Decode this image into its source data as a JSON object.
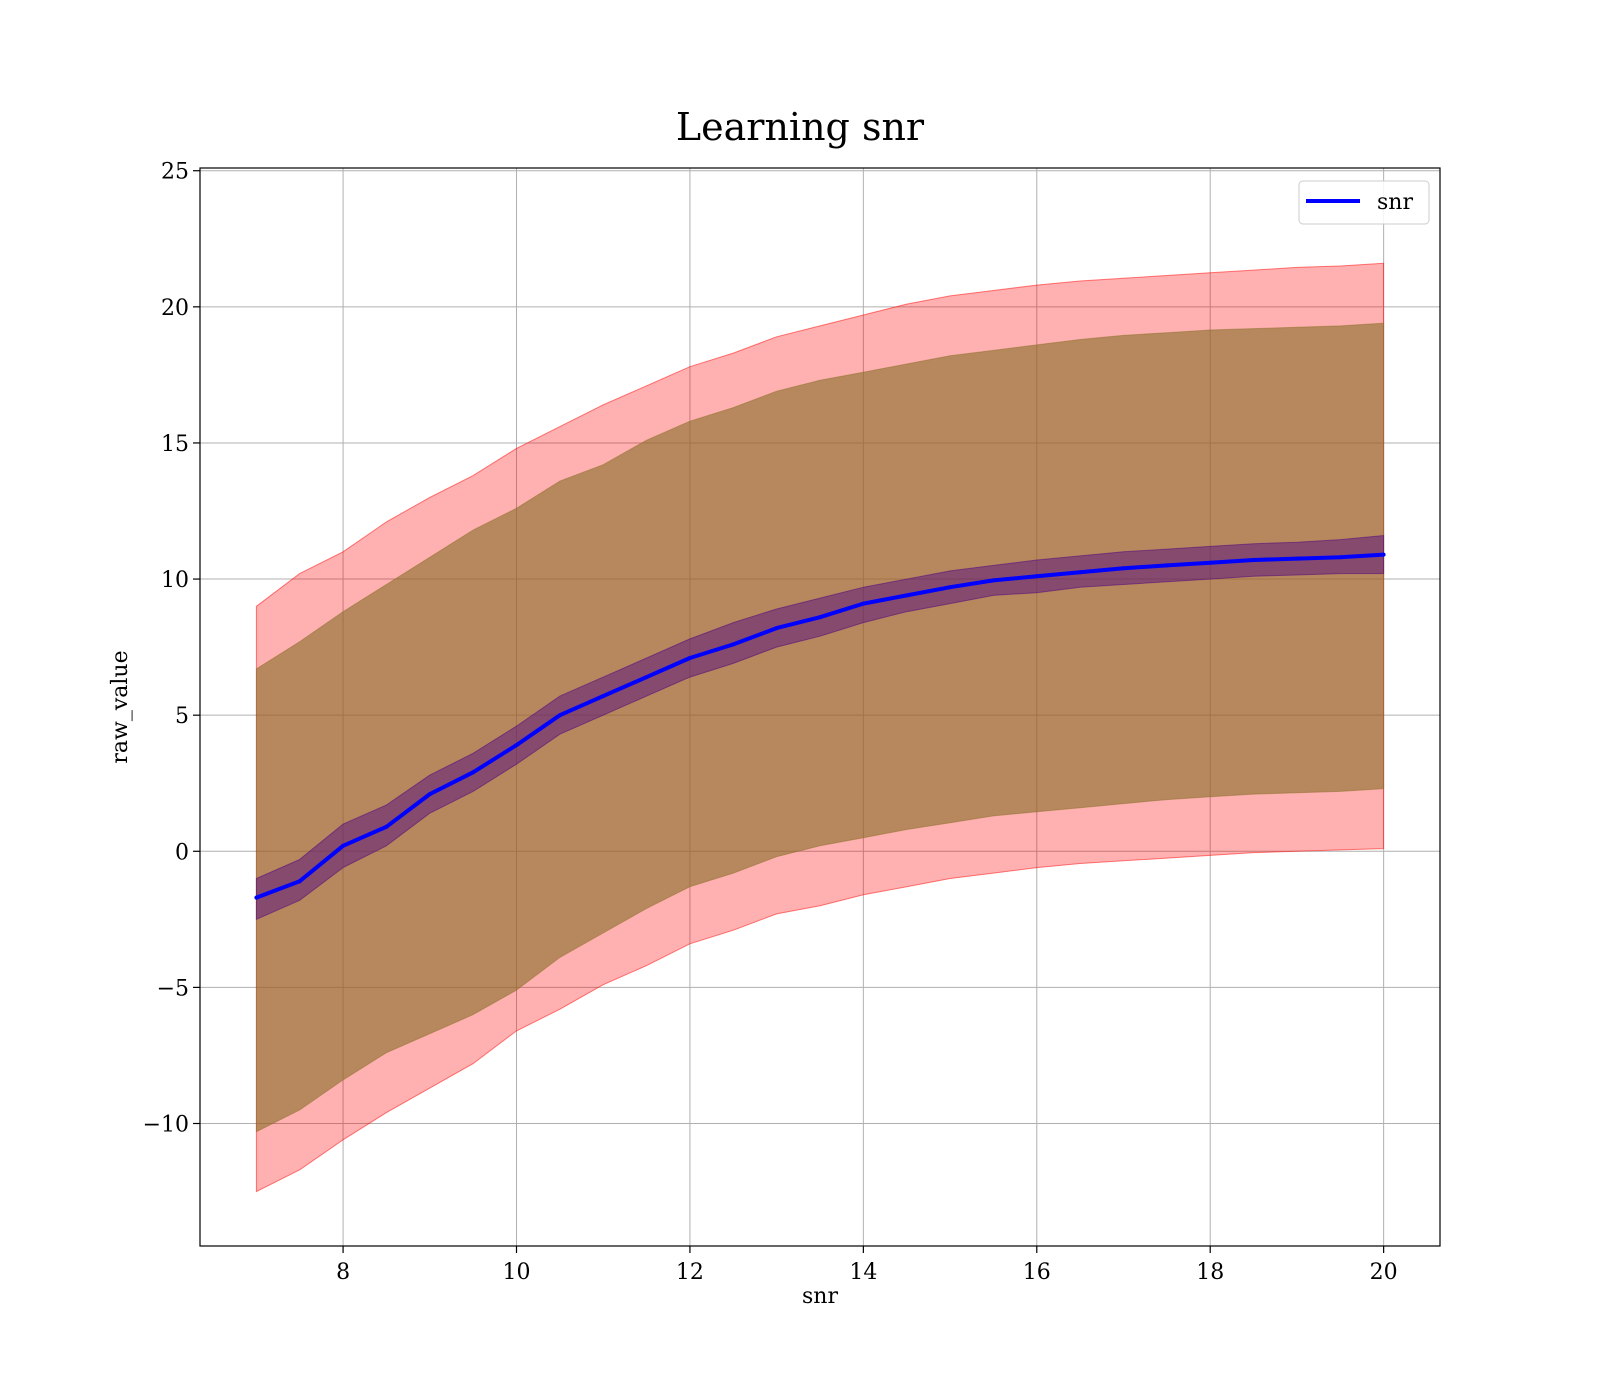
{
  "chart_data": {
    "type": "line",
    "title": "Learning snr",
    "xlabel": "snr",
    "ylabel": "raw_value",
    "xlim": [
      6.35,
      20.65
    ],
    "ylim": [
      -14.5,
      25.1
    ],
    "xticks": [
      8,
      10,
      12,
      14,
      16,
      18,
      20
    ],
    "yticks": [
      -10,
      -5,
      0,
      5,
      10,
      15,
      20,
      25
    ],
    "ytick_labels": [
      "−10",
      "−5",
      "0",
      "5",
      "10",
      "15",
      "20",
      "25"
    ],
    "xtick_labels": [
      "8",
      "10",
      "12",
      "14",
      "16",
      "18",
      "20"
    ],
    "grid": true,
    "legend": {
      "position": "top-right",
      "entries": [
        "snr"
      ]
    },
    "colors": {
      "line": "#0000ff",
      "outer_band": "#ff0000",
      "middle_band": "#8b6f2a",
      "inner_band": "#4b0082"
    },
    "x": [
      7,
      7.5,
      8,
      8.5,
      9,
      9.5,
      10,
      10.5,
      11,
      11.5,
      12,
      12.5,
      13,
      13.5,
      14,
      14.5,
      15,
      15.5,
      16,
      16.5,
      17,
      17.5,
      18,
      18.5,
      19,
      19.5,
      20
    ],
    "series": [
      {
        "name": "snr",
        "role": "mean",
        "values": [
          -1.7,
          -1.1,
          0.2,
          0.9,
          2.1,
          2.9,
          3.9,
          5.0,
          5.7,
          6.4,
          7.1,
          7.6,
          8.2,
          8.6,
          9.1,
          9.4,
          9.7,
          9.95,
          10.1,
          10.25,
          10.4,
          10.5,
          10.6,
          10.7,
          10.75,
          10.8,
          10.9
        ]
      },
      {
        "role": "inner_band",
        "upper": [
          -1.0,
          -0.3,
          1.0,
          1.7,
          2.8,
          3.6,
          4.6,
          5.7,
          6.4,
          7.1,
          7.8,
          8.4,
          8.9,
          9.3,
          9.7,
          10.0,
          10.3,
          10.5,
          10.7,
          10.85,
          11.0,
          11.1,
          11.2,
          11.3,
          11.35,
          11.45,
          11.6
        ],
        "lower": [
          -2.5,
          -1.8,
          -0.6,
          0.2,
          1.4,
          2.2,
          3.2,
          4.3,
          5.0,
          5.7,
          6.4,
          6.9,
          7.5,
          7.9,
          8.4,
          8.8,
          9.1,
          9.4,
          9.5,
          9.7,
          9.8,
          9.9,
          10.0,
          10.1,
          10.15,
          10.2,
          10.2
        ]
      },
      {
        "role": "middle_band",
        "upper": [
          6.7,
          7.7,
          8.8,
          9.8,
          10.8,
          11.8,
          12.6,
          13.6,
          14.2,
          15.1,
          15.8,
          16.3,
          16.9,
          17.3,
          17.6,
          17.9,
          18.2,
          18.4,
          18.6,
          18.8,
          18.95,
          19.05,
          19.15,
          19.2,
          19.25,
          19.3,
          19.4
        ],
        "lower": [
          -10.3,
          -9.5,
          -8.4,
          -7.4,
          -6.7,
          -6.0,
          -5.1,
          -3.9,
          -3.0,
          -2.1,
          -1.3,
          -0.8,
          -0.2,
          0.2,
          0.5,
          0.8,
          1.05,
          1.3,
          1.45,
          1.6,
          1.75,
          1.9,
          2.0,
          2.1,
          2.15,
          2.2,
          2.3
        ]
      },
      {
        "role": "outer_band",
        "upper": [
          9.0,
          10.2,
          11.0,
          12.1,
          13.0,
          13.8,
          14.8,
          15.6,
          16.4,
          17.1,
          17.8,
          18.3,
          18.9,
          19.3,
          19.7,
          20.1,
          20.4,
          20.6,
          20.8,
          20.95,
          21.05,
          21.15,
          21.25,
          21.35,
          21.45,
          21.5,
          21.6
        ],
        "lower": [
          -12.5,
          -11.7,
          -10.6,
          -9.6,
          -8.7,
          -7.8,
          -6.6,
          -5.8,
          -4.9,
          -4.2,
          -3.4,
          -2.9,
          -2.3,
          -2.0,
          -1.6,
          -1.3,
          -1.0,
          -0.8,
          -0.6,
          -0.45,
          -0.35,
          -0.25,
          -0.15,
          -0.05,
          0.0,
          0.05,
          0.1
        ]
      }
    ]
  }
}
